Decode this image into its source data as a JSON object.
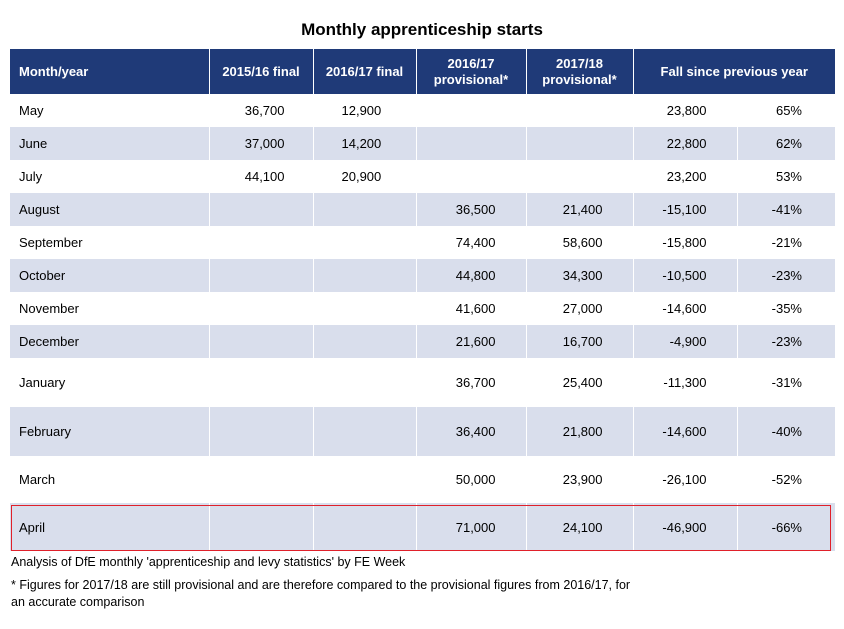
{
  "chart_data": {
    "type": "table",
    "title": "Monthly apprenticeship starts",
    "columns": [
      "Month/year",
      "2015/16 final",
      "2016/17 final",
      "2016/17 provisional*",
      "2017/18 provisional*",
      "Fall since previous year",
      ""
    ],
    "rows": [
      [
        "May",
        "36,700",
        "12,900",
        "",
        "",
        "23,800",
        "65%"
      ],
      [
        "June",
        "37,000",
        "14,200",
        "",
        "",
        "22,800",
        "62%"
      ],
      [
        "July",
        "44,100",
        "20,900",
        "",
        "",
        "23,200",
        "53%"
      ],
      [
        "August",
        "",
        "",
        "36,500",
        "21,400",
        "-15,100",
        "-41%"
      ],
      [
        "September",
        "",
        "",
        "74,400",
        "58,600",
        "-15,800",
        "-21%"
      ],
      [
        "October",
        "",
        "",
        "44,800",
        "34,300",
        "-10,500",
        "-23%"
      ],
      [
        "November",
        "",
        "",
        "41,600",
        "27,000",
        "-14,600",
        "-35%"
      ],
      [
        "December",
        "",
        "",
        "21,600",
        "16,700",
        "-4,900",
        "-23%"
      ],
      [
        "January",
        "",
        "",
        "36,700",
        "25,400",
        "-11,300",
        "-31%"
      ],
      [
        "February",
        "",
        "",
        "36,400",
        "21,800",
        "-14,600",
        "-40%"
      ],
      [
        "March",
        "",
        "",
        "50,000",
        "23,900",
        "-26,100",
        "-52%"
      ],
      [
        "April",
        "",
        "",
        "71,000",
        "24,100",
        "-46,900",
        "-66%"
      ]
    ]
  },
  "notes": {
    "source": "Analysis of DfE monthly 'apprenticeship and levy statistics' by FE Week",
    "footnote_line1": "* Figures for 2017/18 are still provisional and are therefore compared to the provisional figures from 2016/17, for",
    "footnote_line2": "an accurate comparison"
  },
  "colors": {
    "header_bg": "#1f3a78",
    "band_bg": "#d9deec",
    "highlight_border": "#e0202a"
  }
}
